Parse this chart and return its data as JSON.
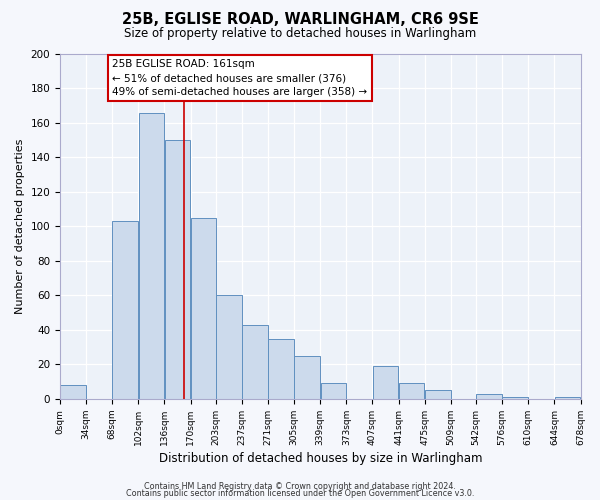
{
  "title": "25B, EGLISE ROAD, WARLINGHAM, CR6 9SE",
  "subtitle": "Size of property relative to detached houses in Warlingham",
  "xlabel": "Distribution of detached houses by size in Warlingham",
  "ylabel": "Number of detached properties",
  "bar_color": "#ccdaec",
  "bar_edge_color": "#6090c0",
  "background_color": "#edf2f9",
  "grid_color": "#ffffff",
  "marker_line_color": "#cc0000",
  "marker_value": 161,
  "annotation_line1": "25B EGLISE ROAD: 161sqm",
  "annotation_line2": "← 51% of detached houses are smaller (376)",
  "annotation_line3": "49% of semi-detached houses are larger (358) →",
  "bin_edges": [
    0,
    34,
    68,
    102,
    136,
    170,
    203,
    237,
    271,
    305,
    339,
    373,
    407,
    441,
    475,
    509,
    542,
    576,
    610,
    644,
    678
  ],
  "bin_labels": [
    "0sqm",
    "34sqm",
    "68sqm",
    "102sqm",
    "136sqm",
    "170sqm",
    "203sqm",
    "237sqm",
    "271sqm",
    "305sqm",
    "339sqm",
    "373sqm",
    "407sqm",
    "441sqm",
    "475sqm",
    "509sqm",
    "542sqm",
    "576sqm",
    "610sqm",
    "644sqm",
    "678sqm"
  ],
  "counts": [
    8,
    0,
    103,
    166,
    150,
    105,
    60,
    43,
    35,
    25,
    9,
    0,
    19,
    9,
    5,
    0,
    3,
    1,
    0,
    1
  ],
  "ylim": [
    0,
    200
  ],
  "yticks": [
    0,
    20,
    40,
    60,
    80,
    100,
    120,
    140,
    160,
    180,
    200
  ],
  "footer1": "Contains HM Land Registry data © Crown copyright and database right 2024.",
  "footer2": "Contains public sector information licensed under the Open Government Licence v3.0."
}
